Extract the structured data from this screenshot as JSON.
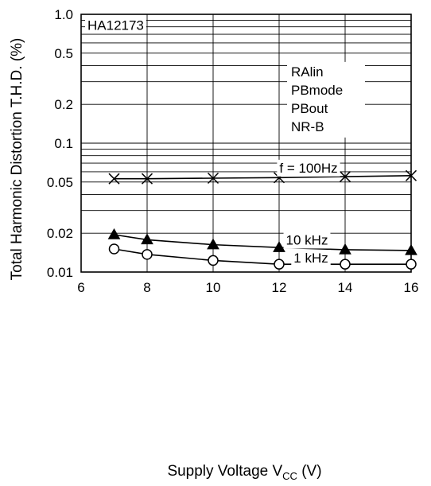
{
  "chart_data": {
    "type": "line",
    "title": "",
    "device_label": "HA12173",
    "conditions": [
      "RAlin",
      "PBmode",
      "PBout",
      "NR-B"
    ],
    "xlabel": "Supply Voltage V",
    "xlabel_sub": "CC",
    "xlabel_unit": " (V)",
    "ylabel": "Total Harmonic Distortion T.H.D. (%)",
    "xlim": [
      6,
      16
    ],
    "ylim": [
      0.01,
      1.0
    ],
    "yscale": "log",
    "x_ticks": [
      "6",
      "8",
      "10",
      "12",
      "14",
      "16"
    ],
    "y_ticks": [
      {
        "value": 1.0,
        "label": "1.0"
      },
      {
        "value": 0.5,
        "label": "0.5"
      },
      {
        "value": 0.2,
        "label": "0.2"
      },
      {
        "value": 0.1,
        "label": "0.1"
      },
      {
        "value": 0.05,
        "label": "0.05"
      },
      {
        "value": 0.02,
        "label": "0.02"
      },
      {
        "value": 0.01,
        "label": "0.01"
      }
    ],
    "grid": true,
    "series": [
      {
        "name": "f = 100Hz",
        "marker": "x",
        "x": [
          7,
          8,
          10,
          12,
          14,
          16
        ],
        "y": [
          0.053,
          0.053,
          0.0535,
          0.054,
          0.055,
          0.056
        ]
      },
      {
        "name": "10 kHz",
        "marker": "triangle-filled",
        "x": [
          7,
          8,
          10,
          12,
          14,
          16
        ],
        "y": [
          0.0195,
          0.0178,
          0.0163,
          0.0155,
          0.0149,
          0.0147
        ]
      },
      {
        "name": "1 kHz",
        "marker": "circle-open",
        "x": [
          7,
          8,
          10,
          12,
          14,
          16
        ],
        "y": [
          0.0151,
          0.0137,
          0.0123,
          0.0115,
          0.0115,
          0.0115
        ]
      }
    ]
  }
}
